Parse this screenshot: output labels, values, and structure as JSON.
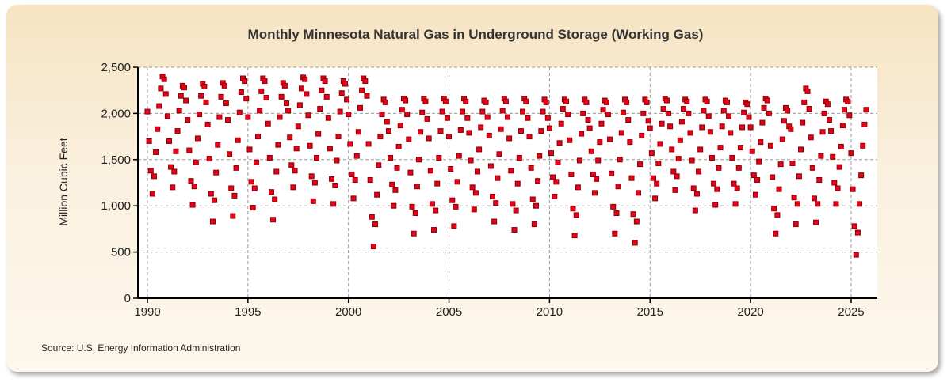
{
  "chart_data": {
    "type": "scatter",
    "title": "Monthly Minnesota Natural Gas in Underground Storage (Working Gas)",
    "xlabel": "",
    "ylabel": "Million Cubic Feet",
    "source": "Source: U.S. Energy Information Administration",
    "xlim": [
      1990,
      2026
    ],
    "ylim": [
      0,
      2500
    ],
    "x_ticks": [
      "1990",
      "1995",
      "2000",
      "2005",
      "2010",
      "2015",
      "2020",
      "2025"
    ],
    "y_ticks": [
      "0",
      "500",
      "1,000",
      "1,500",
      "2,000",
      "2,500"
    ],
    "grid": true,
    "marker_color": "#e8001c",
    "marker_edge": "#8b0000",
    "series": [
      {
        "years": [
          1990,
          1991,
          1992,
          1993,
          1994,
          1995,
          1996,
          1997,
          1998,
          1999,
          2000,
          2001,
          2002,
          2003,
          2004,
          2005,
          2006,
          2007,
          2008,
          2009,
          2010,
          2011,
          2012,
          2013,
          2014,
          2015,
          2016,
          2017,
          2018,
          2019,
          2020,
          2021,
          2022,
          2023,
          2024,
          2025
        ],
        "monthly_values": [
          [
            2020,
            1700,
            1380,
            1130,
            1320,
            1580,
            1830,
            2080,
            2270,
            2400,
            2370,
            2210
          ],
          [
            1970,
            1700,
            1420,
            1200,
            1370,
            1590,
            1810,
            2030,
            2190,
            2300,
            2280,
            2140
          ],
          [
            1930,
            1600,
            1270,
            1010,
            1210,
            1470,
            1730,
            1990,
            2190,
            2320,
            2290,
            2120
          ],
          [
            1880,
            1510,
            1130,
            830,
            1060,
            1360,
            1660,
            1960,
            2180,
            2330,
            2300,
            2110
          ],
          [
            1930,
            1560,
            1190,
            890,
            1110,
            1410,
            1710,
            2010,
            2230,
            2380,
            2350,
            2160
          ],
          [
            1960,
            1610,
            1260,
            980,
            1190,
            1470,
            1750,
            2030,
            2240,
            2380,
            2350,
            2170
          ],
          [
            1890,
            1520,
            1150,
            850,
            1070,
            1370,
            1660,
            1960,
            2180,
            2330,
            2300,
            2110
          ],
          [
            2030,
            1740,
            1440,
            1200,
            1380,
            1620,
            1860,
            2090,
            2270,
            2390,
            2370,
            2210
          ],
          [
            1980,
            1650,
            1320,
            1050,
            1250,
            1520,
            1780,
            2050,
            2250,
            2380,
            2350,
            2180
          ],
          [
            1950,
            1620,
            1290,
            1020,
            1220,
            1490,
            1750,
            2020,
            2220,
            2350,
            2320,
            2150
          ],
          [
            1990,
            1670,
            1340,
            1080,
            1280,
            1540,
            1800,
            2060,
            2250,
            2380,
            2350,
            2190
          ],
          [
            1670,
            1280,
            880,
            560,
            800,
            1120,
            1440,
            1750,
            1990,
            2150,
            2120,
            1910
          ],
          [
            1810,
            1520,
            1230,
            1000,
            1170,
            1410,
            1640,
            1870,
            2040,
            2160,
            2140,
            1990
          ],
          [
            1720,
            1360,
            990,
            700,
            920,
            1210,
            1500,
            1800,
            2010,
            2160,
            2130,
            1940
          ],
          [
            1730,
            1380,
            1020,
            740,
            950,
            1240,
            1520,
            1810,
            2020,
            2160,
            2130,
            1950
          ],
          [
            1750,
            1400,
            1060,
            780,
            990,
            1260,
            1540,
            1820,
            2020,
            2160,
            2130,
            1950
          ],
          [
            1790,
            1490,
            1200,
            960,
            1140,
            1370,
            1610,
            1850,
            2020,
            2140,
            2120,
            1960
          ],
          [
            1760,
            1430,
            1100,
            830,
            1030,
            1300,
            1560,
            1830,
            2030,
            2160,
            2130,
            1960
          ],
          [
            1730,
            1380,
            1020,
            740,
            950,
            1240,
            1520,
            1810,
            2020,
            2160,
            2130,
            1950
          ],
          [
            1750,
            1410,
            1070,
            800,
            1000,
            1270,
            1540,
            1810,
            2020,
            2150,
            2120,
            1950
          ],
          [
            1840,
            1570,
            1310,
            1100,
            1260,
            1470,
            1680,
            1890,
            2050,
            2150,
            2130,
            1990
          ],
          [
            1710,
            1340,
            970,
            680,
            900,
            1200,
            1490,
            1780,
            2000,
            2150,
            2120,
            1930
          ],
          [
            1840,
            1590,
            1340,
            1140,
            1290,
            1490,
            1690,
            1890,
            2040,
            2140,
            2120,
            1990
          ],
          [
            1720,
            1350,
            990,
            700,
            920,
            1210,
            1500,
            1790,
            2010,
            2150,
            2120,
            1930
          ],
          [
            1690,
            1300,
            910,
            600,
            830,
            1140,
            1450,
            1760,
            2000,
            2150,
            2120,
            1920
          ],
          [
            1840,
            1570,
            1300,
            1080,
            1240,
            1460,
            1670,
            1890,
            2050,
            2160,
            2140,
            2000
          ],
          [
            1860,
            1610,
            1370,
            1170,
            1320,
            1510,
            1710,
            1910,
            2050,
            2150,
            2130,
            2000
          ],
          [
            1790,
            1490,
            1190,
            950,
            1130,
            1370,
            1610,
            1850,
            2030,
            2150,
            2130,
            1970
          ],
          [
            1800,
            1520,
            1240,
            1010,
            1180,
            1410,
            1630,
            1860,
            2030,
            2140,
            2120,
            1970
          ],
          [
            1790,
            1520,
            1240,
            1020,
            1190,
            1410,
            1630,
            1850,
            2010,
            2120,
            2100,
            1960
          ],
          [
            1850,
            1590,
            1330,
            1120,
            1280,
            1480,
            1690,
            1900,
            2060,
            2160,
            2140,
            2000
          ],
          [
            1650,
            1310,
            970,
            700,
            900,
            1180,
            1450,
            1720,
            1920,
            2060,
            2030,
            1860
          ],
          [
            1830,
            1460,
            1090,
            800,
            1020,
            1320,
            1610,
            1900,
            2120,
            2270,
            2240,
            2050
          ],
          [
            1740,
            1410,
            1080,
            820,
            1020,
            1280,
            1540,
            1800,
            2000,
            2130,
            2100,
            1930
          ],
          [
            1810,
            1530,
            1250,
            1020,
            1190,
            1420,
            1640,
            1870,
            2040,
            2150,
            2130,
            1980
          ],
          [
            1570,
            1180,
            780,
            470,
            710,
            1020,
            1330,
            1650,
            1880,
            2040
          ]
        ]
      }
    ]
  }
}
